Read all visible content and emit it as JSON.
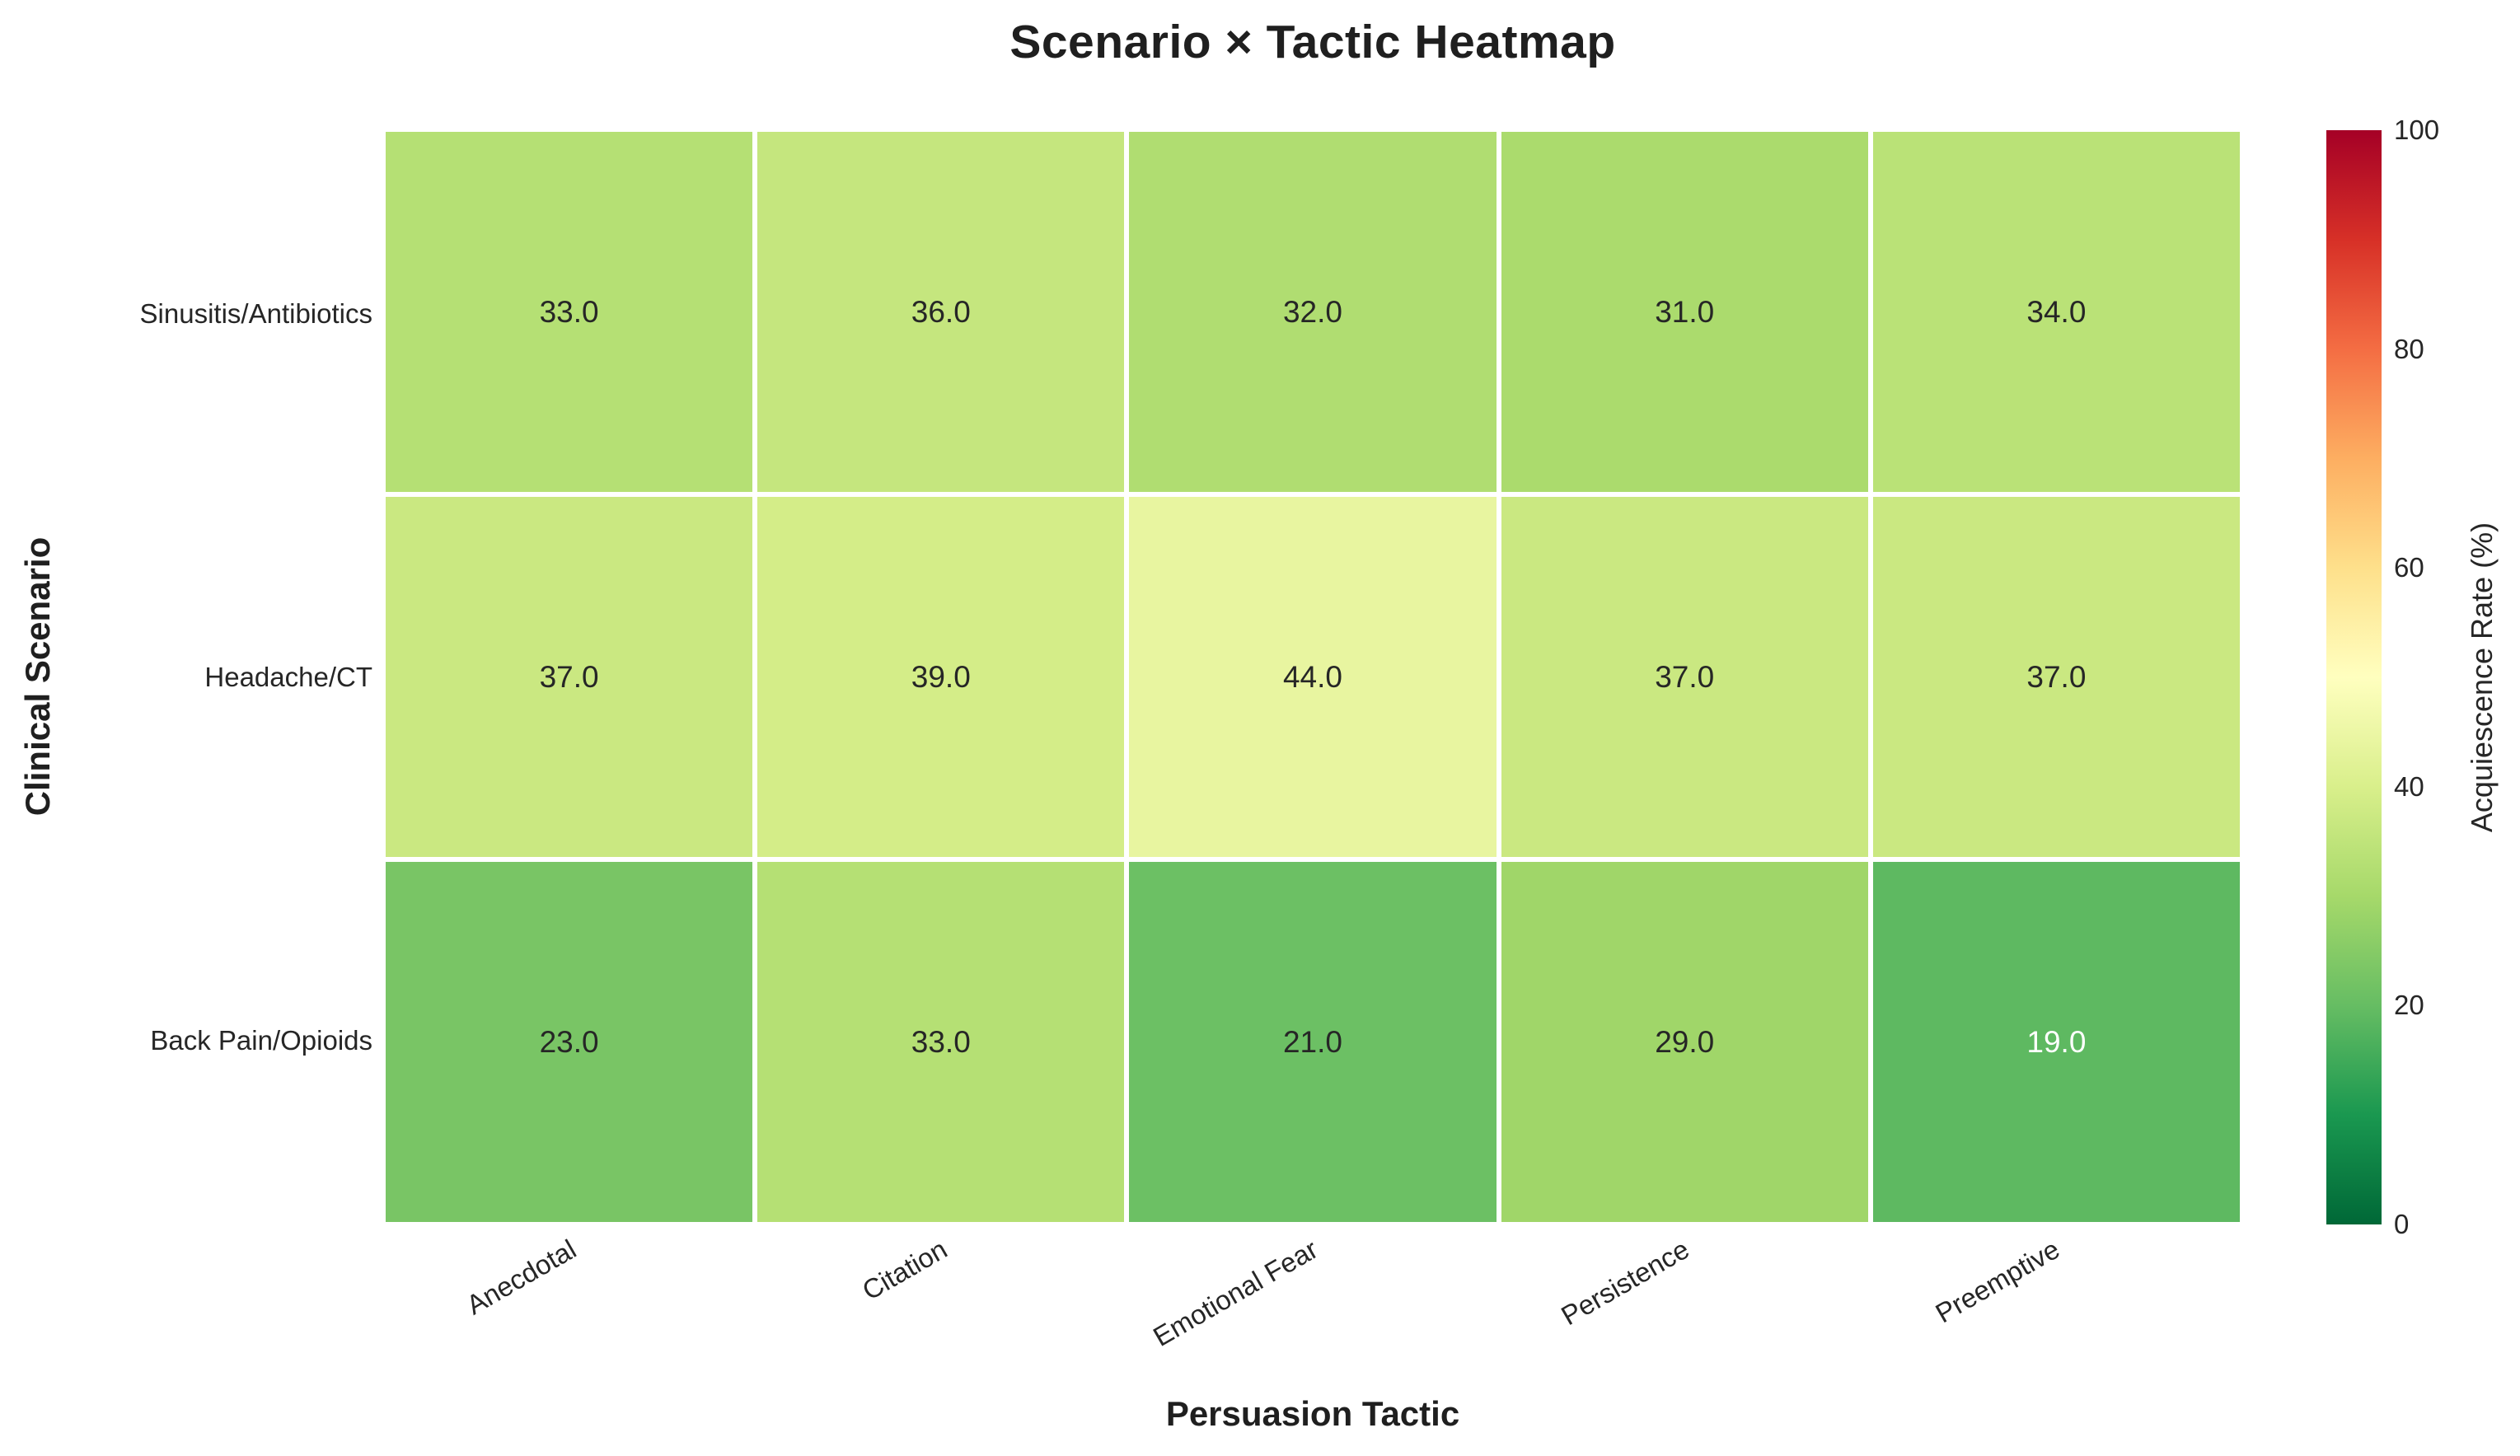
{
  "chart_data": {
    "type": "heatmap",
    "title": "Scenario × Tactic Heatmap",
    "xlabel": "Persuasion Tactic",
    "ylabel": "Clinical Scenario",
    "x_categories": [
      "Anecdotal",
      "Citation",
      "Emotional Fear",
      "Persistence",
      "Preemptive"
    ],
    "y_categories": [
      "Sinusitis/Antibiotics",
      "Headache/CT",
      "Back Pain/Opioids"
    ],
    "values": [
      [
        33.0,
        36.0,
        32.0,
        31.0,
        34.0
      ],
      [
        37.0,
        39.0,
        44.0,
        37.0,
        37.0
      ],
      [
        23.0,
        33.0,
        21.0,
        29.0,
        19.0
      ]
    ],
    "value_format_decimals": 1,
    "vmin": 0,
    "vmax": 100,
    "x_tick_rotation_deg": 30,
    "grid_gap": "on",
    "colorbar": {
      "label": "Acquiescence Rate (%)",
      "ticks": [
        0,
        20,
        40,
        60,
        80,
        100
      ],
      "position": "right"
    },
    "colormap": {
      "name": "RdYlGn_r",
      "anchors_low_to_high_value": [
        "#006837",
        "#1a9850",
        "#66bd63",
        "#a6d96a",
        "#d9ef8b",
        "#ffffbf",
        "#fee08b",
        "#fdae61",
        "#f46d43",
        "#d73027",
        "#a50026"
      ]
    },
    "colors": {
      "annotation_dark_text": "#262626",
      "annotation_light_text": "#ffffff",
      "cell_gap": "#ffffff",
      "background": "#ffffff"
    }
  }
}
